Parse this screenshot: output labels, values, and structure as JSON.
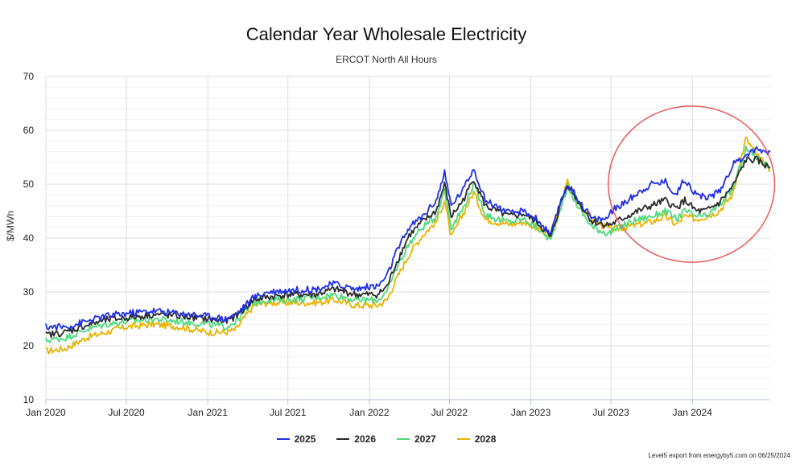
{
  "chart_data": {
    "type": "line",
    "title": "Calendar Year Wholesale Electricity",
    "subtitle": "ERCOT North All Hours",
    "ylabel": "$/MWh",
    "xlabel": "",
    "ylim": [
      10,
      70
    ],
    "yticks": [
      10,
      20,
      30,
      40,
      50,
      60,
      70
    ],
    "xlim": [
      "2020-01-01",
      "2024-06-25"
    ],
    "xticks": [
      {
        "date": "2020-01-01",
        "label": "Jan 2020"
      },
      {
        "date": "2020-07-01",
        "label": "Jul 2020"
      },
      {
        "date": "2021-01-01",
        "label": "Jan 2021"
      },
      {
        "date": "2021-07-01",
        "label": "Jul 2021"
      },
      {
        "date": "2022-01-01",
        "label": "Jan 2022"
      },
      {
        "date": "2022-07-01",
        "label": "Jul 2022"
      },
      {
        "date": "2023-01-01",
        "label": "Jan 2023"
      },
      {
        "date": "2023-07-01",
        "label": "Jul 2023"
      },
      {
        "date": "2024-01-01",
        "label": "Jan 2024"
      }
    ],
    "grid": true,
    "legend_position": "bottom-center",
    "series": [
      {
        "name": "2025",
        "color": "#1f2ee8",
        "points": [
          [
            "2020-01-01",
            23.5
          ],
          [
            "2020-02-15",
            23.5
          ],
          [
            "2020-04-01",
            24.5
          ],
          [
            "2020-05-15",
            25.5
          ],
          [
            "2020-07-01",
            26
          ],
          [
            "2020-09-01",
            26.5
          ],
          [
            "2020-11-01",
            26
          ],
          [
            "2021-01-01",
            25.5
          ],
          [
            "2021-02-10",
            25
          ],
          [
            "2021-03-05",
            25.8
          ],
          [
            "2021-04-15",
            29
          ],
          [
            "2021-05-15",
            30
          ],
          [
            "2021-07-01",
            30.3
          ],
          [
            "2021-09-01",
            30.5
          ],
          [
            "2021-10-15",
            31.5
          ],
          [
            "2021-12-01",
            30.5
          ],
          [
            "2022-01-01",
            31
          ],
          [
            "2022-01-20",
            31
          ],
          [
            "2022-02-10",
            33
          ],
          [
            "2022-03-01",
            37
          ],
          [
            "2022-04-01",
            42
          ],
          [
            "2022-05-01",
            44
          ],
          [
            "2022-06-01",
            47
          ],
          [
            "2022-06-20",
            52
          ],
          [
            "2022-07-05",
            46
          ],
          [
            "2022-08-01",
            49
          ],
          [
            "2022-08-25",
            53
          ],
          [
            "2022-09-20",
            47
          ],
          [
            "2022-10-15",
            46
          ],
          [
            "2022-11-15",
            44.5
          ],
          [
            "2022-12-15",
            45
          ],
          [
            "2023-01-15",
            43.5
          ],
          [
            "2023-02-15",
            40.5
          ],
          [
            "2023-03-10",
            47
          ],
          [
            "2023-03-25",
            50
          ],
          [
            "2023-04-20",
            47
          ],
          [
            "2023-05-20",
            43.5
          ],
          [
            "2023-06-20",
            43.5
          ],
          [
            "2023-07-01",
            45
          ],
          [
            "2023-08-01",
            46.5
          ],
          [
            "2023-09-01",
            48.5
          ],
          [
            "2023-10-01",
            50
          ],
          [
            "2023-11-01",
            50.5
          ],
          [
            "2023-11-25",
            48
          ],
          [
            "2023-12-15",
            51
          ],
          [
            "2024-01-10",
            48
          ],
          [
            "2024-02-01",
            47.5
          ],
          [
            "2024-03-01",
            48.5
          ],
          [
            "2024-04-01",
            53.5
          ],
          [
            "2024-05-01",
            55.5
          ],
          [
            "2024-05-25",
            56.5
          ],
          [
            "2024-06-25",
            56
          ]
        ]
      },
      {
        "name": "2026",
        "color": "#2a2a2a",
        "points": [
          [
            "2020-01-01",
            22
          ],
          [
            "2020-02-15",
            22.5
          ],
          [
            "2020-04-01",
            23.8
          ],
          [
            "2020-05-15",
            24.8
          ],
          [
            "2020-07-01",
            25.2
          ],
          [
            "2020-09-01",
            25.8
          ],
          [
            "2020-11-01",
            25.5
          ],
          [
            "2021-01-01",
            25
          ],
          [
            "2021-02-10",
            24.5
          ],
          [
            "2021-03-05",
            25.5
          ],
          [
            "2021-04-15",
            28.5
          ],
          [
            "2021-05-15",
            29
          ],
          [
            "2021-07-01",
            29.5
          ],
          [
            "2021-09-01",
            29.5
          ],
          [
            "2021-10-15",
            30.5
          ],
          [
            "2021-12-01",
            29.5
          ],
          [
            "2022-01-01",
            29.5
          ],
          [
            "2022-01-20",
            29.5
          ],
          [
            "2022-02-10",
            31
          ],
          [
            "2022-03-01",
            35
          ],
          [
            "2022-04-01",
            40.5
          ],
          [
            "2022-05-01",
            43
          ],
          [
            "2022-06-01",
            45
          ],
          [
            "2022-06-20",
            50
          ],
          [
            "2022-07-05",
            44
          ],
          [
            "2022-08-01",
            47
          ],
          [
            "2022-08-25",
            51
          ],
          [
            "2022-09-20",
            46
          ],
          [
            "2022-10-15",
            45
          ],
          [
            "2022-11-15",
            44
          ],
          [
            "2022-12-15",
            44.5
          ],
          [
            "2023-01-15",
            43
          ],
          [
            "2023-02-15",
            40
          ],
          [
            "2023-03-10",
            46.5
          ],
          [
            "2023-03-25",
            50
          ],
          [
            "2023-04-20",
            46.5
          ],
          [
            "2023-05-20",
            43
          ],
          [
            "2023-06-20",
            42.5
          ],
          [
            "2023-07-01",
            42.5
          ],
          [
            "2023-08-01",
            43.8
          ],
          [
            "2023-09-01",
            45
          ],
          [
            "2023-10-01",
            46
          ],
          [
            "2023-11-01",
            47
          ],
          [
            "2023-11-25",
            45.5
          ],
          [
            "2023-12-15",
            47
          ],
          [
            "2024-01-10",
            45
          ],
          [
            "2024-02-01",
            45
          ],
          [
            "2024-03-01",
            46.5
          ],
          [
            "2024-04-01",
            49.5
          ],
          [
            "2024-05-01",
            54.5
          ],
          [
            "2024-05-25",
            54.5
          ],
          [
            "2024-06-25",
            53
          ]
        ]
      },
      {
        "name": "2027",
        "color": "#4fd97d",
        "points": [
          [
            "2020-01-01",
            21
          ],
          [
            "2020-02-15",
            21.5
          ],
          [
            "2020-04-01",
            23
          ],
          [
            "2020-05-15",
            24
          ],
          [
            "2020-07-01",
            24.5
          ],
          [
            "2020-09-01",
            25
          ],
          [
            "2020-11-01",
            24.5
          ],
          [
            "2021-01-01",
            24
          ],
          [
            "2021-02-10",
            23.5
          ],
          [
            "2021-03-05",
            24.5
          ],
          [
            "2021-04-15",
            28
          ],
          [
            "2021-05-15",
            28.5
          ],
          [
            "2021-07-01",
            28.5
          ],
          [
            "2021-09-01",
            29
          ],
          [
            "2021-10-15",
            29.5
          ],
          [
            "2021-12-01",
            28.5
          ],
          [
            "2022-01-01",
            28.5
          ],
          [
            "2022-01-20",
            28.5
          ],
          [
            "2022-02-10",
            30
          ],
          [
            "2022-03-01",
            34
          ],
          [
            "2022-04-01",
            39
          ],
          [
            "2022-05-01",
            42
          ],
          [
            "2022-06-01",
            44
          ],
          [
            "2022-06-20",
            49
          ],
          [
            "2022-07-05",
            42
          ],
          [
            "2022-08-01",
            45.5
          ],
          [
            "2022-08-25",
            50
          ],
          [
            "2022-09-20",
            44.5
          ],
          [
            "2022-10-15",
            43.5
          ],
          [
            "2022-11-15",
            43
          ],
          [
            "2022-12-15",
            43.5
          ],
          [
            "2023-01-15",
            42
          ],
          [
            "2023-02-15",
            39.5
          ],
          [
            "2023-03-10",
            46
          ],
          [
            "2023-03-25",
            49.5
          ],
          [
            "2023-04-20",
            45.5
          ],
          [
            "2023-05-20",
            42
          ],
          [
            "2023-06-20",
            41
          ],
          [
            "2023-07-01",
            41
          ],
          [
            "2023-08-01",
            42.5
          ],
          [
            "2023-09-01",
            43.5
          ],
          [
            "2023-10-01",
            44
          ],
          [
            "2023-11-01",
            45
          ],
          [
            "2023-11-25",
            43.5
          ],
          [
            "2023-12-15",
            45
          ],
          [
            "2024-01-10",
            44
          ],
          [
            "2024-02-01",
            44
          ],
          [
            "2024-03-01",
            46
          ],
          [
            "2024-04-01",
            49
          ],
          [
            "2024-05-01",
            56.5
          ],
          [
            "2024-05-25",
            55
          ],
          [
            "2024-06-25",
            53
          ]
        ]
      },
      {
        "name": "2028",
        "color": "#e8b400",
        "points": [
          [
            "2020-01-01",
            19
          ],
          [
            "2020-02-15",
            19.5
          ],
          [
            "2020-04-01",
            21.5
          ],
          [
            "2020-05-15",
            22.5
          ],
          [
            "2020-07-01",
            23.5
          ],
          [
            "2020-09-01",
            24
          ],
          [
            "2020-11-01",
            23.5
          ],
          [
            "2021-01-01",
            22.5
          ],
          [
            "2021-02-10",
            22.5
          ],
          [
            "2021-03-05",
            23
          ],
          [
            "2021-04-15",
            27.5
          ],
          [
            "2021-05-15",
            28
          ],
          [
            "2021-07-01",
            28
          ],
          [
            "2021-09-01",
            28
          ],
          [
            "2021-10-15",
            28.5
          ],
          [
            "2021-12-01",
            27.5
          ],
          [
            "2022-01-01",
            27.5
          ],
          [
            "2022-01-20",
            27.5
          ],
          [
            "2022-02-10",
            28.5
          ],
          [
            "2022-03-01",
            32
          ],
          [
            "2022-04-01",
            37
          ],
          [
            "2022-05-01",
            40.5
          ],
          [
            "2022-06-01",
            43
          ],
          [
            "2022-06-20",
            47
          ],
          [
            "2022-07-05",
            40
          ],
          [
            "2022-08-01",
            44.5
          ],
          [
            "2022-08-25",
            48.5
          ],
          [
            "2022-09-20",
            43.5
          ],
          [
            "2022-10-15",
            43
          ],
          [
            "2022-11-15",
            42.5
          ],
          [
            "2022-12-15",
            43
          ],
          [
            "2023-01-15",
            42
          ],
          [
            "2023-02-15",
            40
          ],
          [
            "2023-03-10",
            46.5
          ],
          [
            "2023-03-25",
            50.5
          ],
          [
            "2023-04-20",
            46.5
          ],
          [
            "2023-05-20",
            43.5
          ],
          [
            "2023-06-20",
            42
          ],
          [
            "2023-07-01",
            41.5
          ],
          [
            "2023-08-01",
            42
          ],
          [
            "2023-09-01",
            42.5
          ],
          [
            "2023-10-01",
            43
          ],
          [
            "2023-11-01",
            44
          ],
          [
            "2023-11-25",
            42.5
          ],
          [
            "2023-12-15",
            44
          ],
          [
            "2024-01-10",
            43.5
          ],
          [
            "2024-02-01",
            44
          ],
          [
            "2024-03-01",
            45
          ],
          [
            "2024-04-01",
            48
          ],
          [
            "2024-05-01",
            58.5
          ],
          [
            "2024-05-25",
            55.5
          ],
          [
            "2024-06-25",
            52.5
          ]
        ]
      }
    ],
    "annotation": {
      "shape": "ellipse",
      "color": "#e85a5a",
      "x_range": [
        "2023-06-25",
        "2024-07-05"
      ],
      "y_range": [
        35.5,
        64.5
      ]
    }
  },
  "credit": "Level5 export from energyby5.com on 06/25/2024"
}
